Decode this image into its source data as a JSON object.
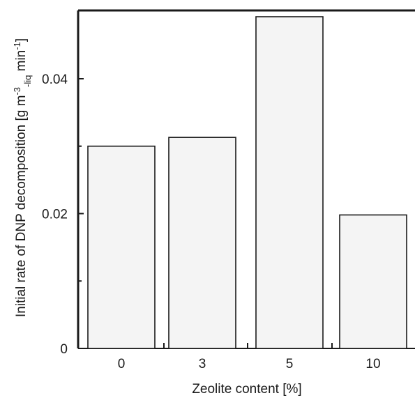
{
  "chart_data": {
    "type": "bar",
    "xlabel": "Zeolite content [%]",
    "ylabel": {
      "main": "Initial rate of DNP decomposition [g m",
      "sup1": "-3",
      "sub": "-liq",
      "mid": " min",
      "sup2": "-1",
      "end": "]"
    },
    "categories": [
      "0",
      "3",
      "5",
      "10"
    ],
    "values": [
      0.03,
      0.0313,
      0.0492,
      0.0198
    ],
    "ylim": [
      0,
      0.05
    ],
    "yticks": [
      0,
      0.02,
      0.04
    ],
    "ytick_labels": [
      "0",
      "0.02",
      "0.04"
    ],
    "grid": false,
    "legend": "none",
    "colors": {
      "bar_fill": "#f4f4f4",
      "bar_stroke": "#1a1a1a",
      "axis": "#1a1a1a"
    }
  }
}
